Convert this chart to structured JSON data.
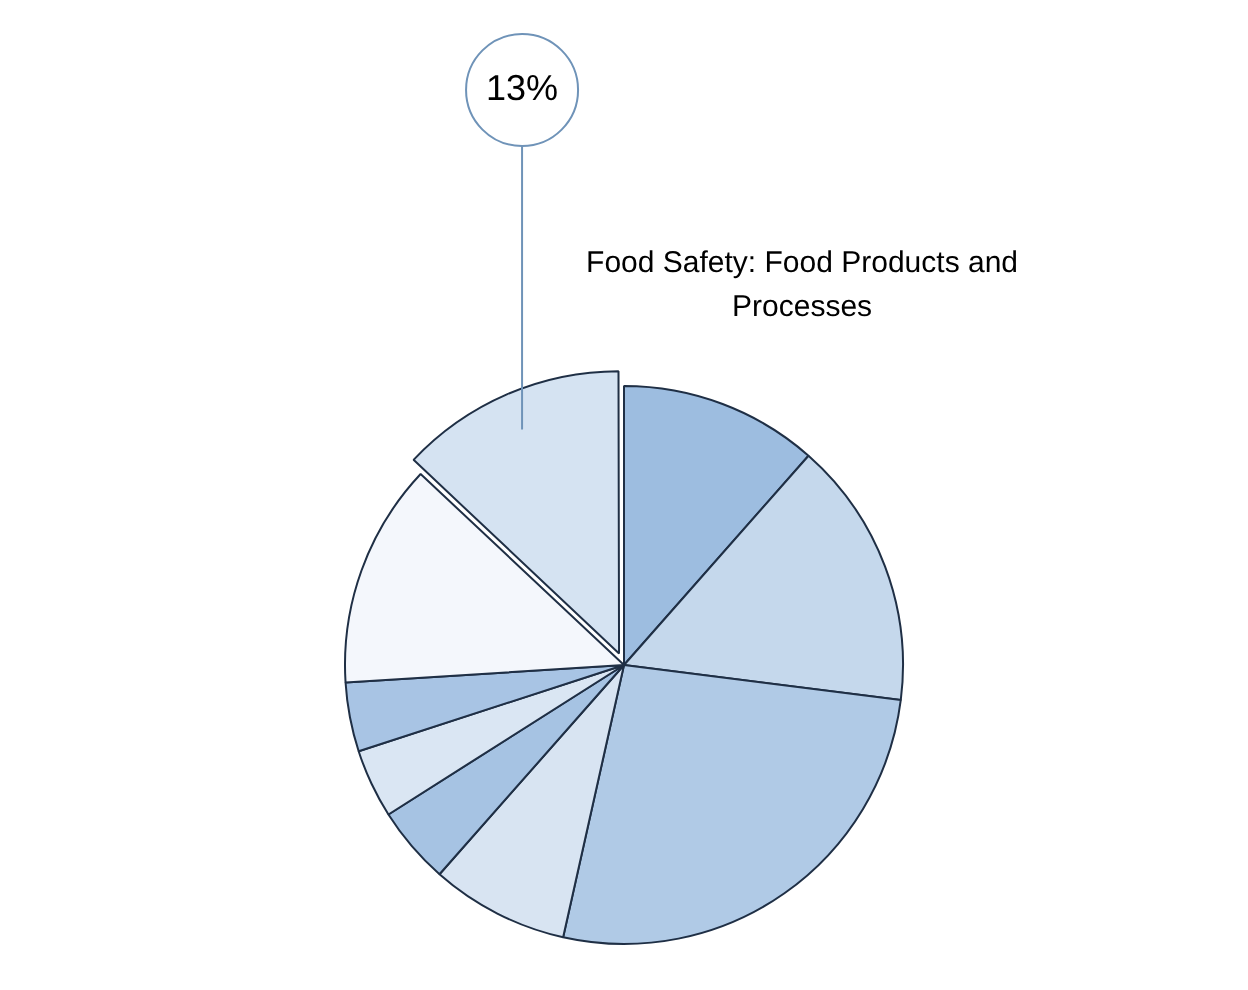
{
  "chart_data": {
    "type": "pie",
    "categories": [
      null,
      null,
      null,
      null,
      null,
      null,
      null,
      null,
      "Food Safety: Food Products and Processes"
    ],
    "values": [
      11.5,
      15.5,
      26.5,
      8,
      4.5,
      4,
      4,
      13,
      13
    ],
    "colors": [
      "#9dbde0",
      "#c5d8ec",
      "#b0cae6",
      "#d8e4f2",
      "#a6c3e3",
      "#dae6f3",
      "#a8c4e4",
      "#f4f7fc",
      "#d5e3f2"
    ],
    "value_labels": [
      null,
      null,
      null,
      null,
      null,
      null,
      null,
      null,
      "13%"
    ],
    "legend": false
  }
}
